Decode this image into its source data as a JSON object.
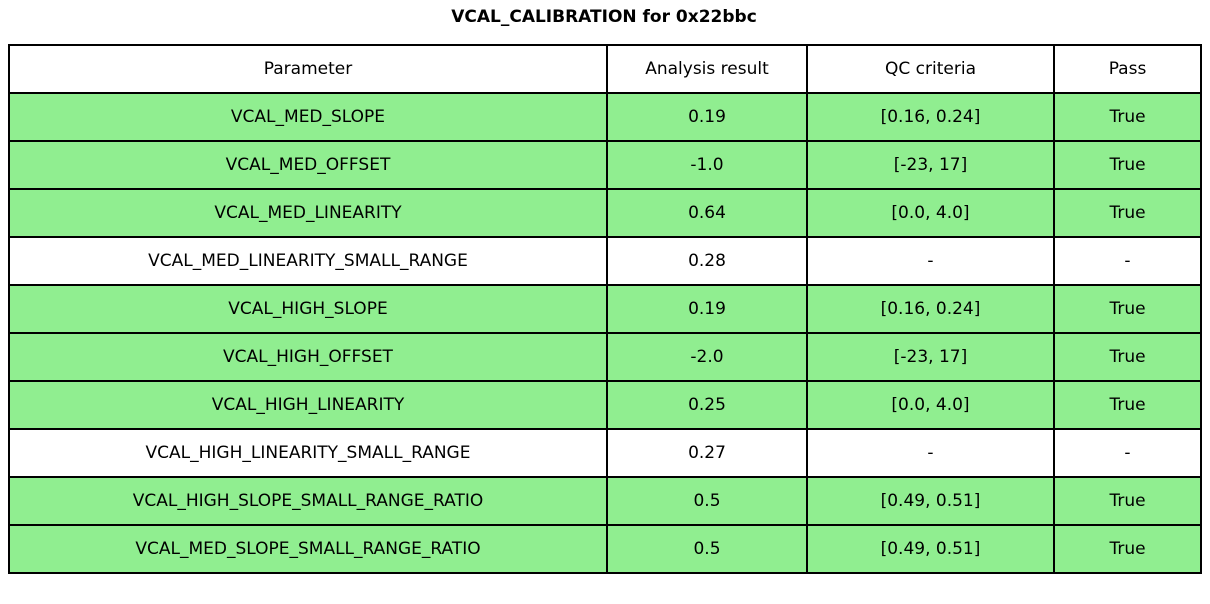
{
  "title": "VCAL_CALIBRATION for 0x22bbc",
  "colors": {
    "pass_row_bg": "#90ee90",
    "neutral_row_bg": "#ffffff",
    "header_bg": "#ffffff",
    "border": "#000000",
    "text": "#000000"
  },
  "table": {
    "headers": [
      "Parameter",
      "Analysis result",
      "QC criteria",
      "Pass"
    ],
    "rows": [
      {
        "parameter": "VCAL_MED_SLOPE",
        "result": "0.19",
        "criteria": "[0.16, 0.24]",
        "pass": "True",
        "highlight": true
      },
      {
        "parameter": "VCAL_MED_OFFSET",
        "result": "-1.0",
        "criteria": "[-23, 17]",
        "pass": "True",
        "highlight": true
      },
      {
        "parameter": "VCAL_MED_LINEARITY",
        "result": "0.64",
        "criteria": "[0.0, 4.0]",
        "pass": "True",
        "highlight": true
      },
      {
        "parameter": "VCAL_MED_LINEARITY_SMALL_RANGE",
        "result": "0.28",
        "criteria": "-",
        "pass": "-",
        "highlight": false
      },
      {
        "parameter": "VCAL_HIGH_SLOPE",
        "result": "0.19",
        "criteria": "[0.16, 0.24]",
        "pass": "True",
        "highlight": true
      },
      {
        "parameter": "VCAL_HIGH_OFFSET",
        "result": "-2.0",
        "criteria": "[-23, 17]",
        "pass": "True",
        "highlight": true
      },
      {
        "parameter": "VCAL_HIGH_LINEARITY",
        "result": "0.25",
        "criteria": "[0.0, 4.0]",
        "pass": "True",
        "highlight": true
      },
      {
        "parameter": "VCAL_HIGH_LINEARITY_SMALL_RANGE",
        "result": "0.27",
        "criteria": "-",
        "pass": "-",
        "highlight": false
      },
      {
        "parameter": "VCAL_HIGH_SLOPE_SMALL_RANGE_RATIO",
        "result": "0.5",
        "criteria": "[0.49, 0.51]",
        "pass": "True",
        "highlight": true
      },
      {
        "parameter": "VCAL_MED_SLOPE_SMALL_RANGE_RATIO",
        "result": "0.5",
        "criteria": "[0.49, 0.51]",
        "pass": "True",
        "highlight": true
      }
    ]
  },
  "chart_data": {
    "type": "table",
    "title": "VCAL_CALIBRATION for 0x22bbc",
    "columns": [
      "Parameter",
      "Analysis result",
      "QC criteria",
      "Pass"
    ],
    "rows": [
      [
        "VCAL_MED_SLOPE",
        0.19,
        "[0.16, 0.24]",
        "True"
      ],
      [
        "VCAL_MED_OFFSET",
        -1.0,
        "[-23, 17]",
        "True"
      ],
      [
        "VCAL_MED_LINEARITY",
        0.64,
        "[0.0, 4.0]",
        "True"
      ],
      [
        "VCAL_MED_LINEARITY_SMALL_RANGE",
        0.28,
        "-",
        "-"
      ],
      [
        "VCAL_HIGH_SLOPE",
        0.19,
        "[0.16, 0.24]",
        "True"
      ],
      [
        "VCAL_HIGH_OFFSET",
        -2.0,
        "[-23, 17]",
        "True"
      ],
      [
        "VCAL_HIGH_LINEARITY",
        0.25,
        "[0.0, 4.0]",
        "True"
      ],
      [
        "VCAL_HIGH_LINEARITY_SMALL_RANGE",
        0.27,
        "-",
        "-"
      ],
      [
        "VCAL_HIGH_SLOPE_SMALL_RANGE_RATIO",
        0.5,
        "[0.49, 0.51]",
        "True"
      ],
      [
        "VCAL_MED_SLOPE_SMALL_RANGE_RATIO",
        0.5,
        "[0.49, 0.51]",
        "True"
      ]
    ],
    "row_highlighted_green": [
      true,
      true,
      true,
      false,
      true,
      true,
      true,
      false,
      true,
      true
    ],
    "layout": {
      "title_position": "top-center",
      "cell_text_align": "center",
      "grid": "full-black-borders",
      "legend_position": "none"
    }
  }
}
